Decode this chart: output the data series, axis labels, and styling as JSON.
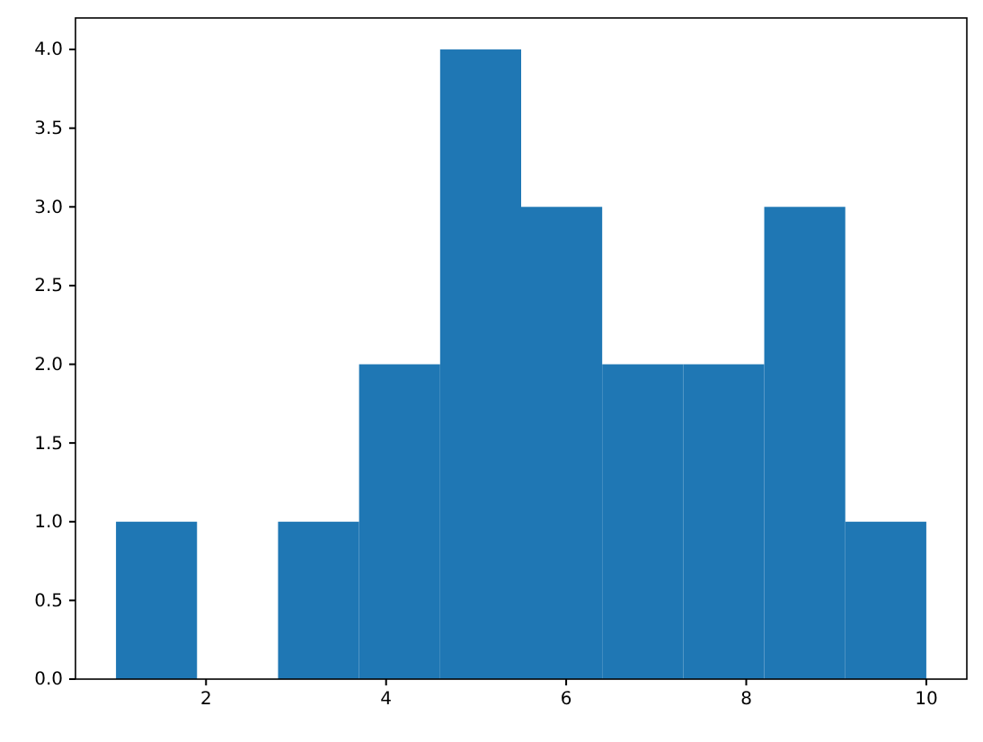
{
  "chart_data": {
    "type": "histogram",
    "bins": [
      1,
      1.9,
      2.8,
      3.7,
      4.6,
      5.5,
      6.4,
      7.3,
      8.2,
      9.1,
      10
    ],
    "values": [
      1,
      0,
      1,
      2,
      4,
      3,
      2,
      2,
      3,
      1
    ],
    "color": "#1f77b4",
    "xlim": [
      0.55,
      10.45
    ],
    "xticks": [
      2,
      4,
      6,
      8,
      10
    ],
    "ylim": [
      0,
      4.2
    ],
    "yticks": [
      {
        "value": 0,
        "label": "0.0"
      },
      {
        "value": 0.5,
        "label": "0.5"
      },
      {
        "value": 1,
        "label": "1.0"
      },
      {
        "value": 1.5,
        "label": "1.5"
      },
      {
        "value": 2,
        "label": "2.0"
      },
      {
        "value": 2.5,
        "label": "2.5"
      },
      {
        "value": 3,
        "label": "3.0"
      },
      {
        "value": 3.5,
        "label": "3.5"
      },
      {
        "value": 4,
        "label": "4.0"
      }
    ],
    "grid": false
  }
}
